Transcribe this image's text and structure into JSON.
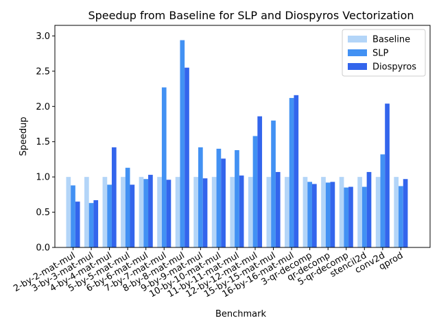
{
  "chart_data": {
    "type": "bar",
    "title": "Speedup from Baseline for SLP and Diospyros Vectorization",
    "xlabel": "Benchmark",
    "ylabel": "Speedup",
    "ylim": [
      0,
      3.15
    ],
    "yticks": [
      "0.0",
      "0.5",
      "1.0",
      "1.5",
      "2.0",
      "2.5",
      "3.0"
    ],
    "grid": false,
    "legend_position": "top-right",
    "categories": [
      "2-by-2-mat-mul",
      "3-by-3-mat-mul",
      "4-by-4-mat-mul",
      "5-by-5-mat-mul",
      "6-by-6-mat-mul",
      "7-by-7-mat-mul",
      "8-by-8-mat-mul",
      "9-by-9-mat-mul",
      "10-by-10-mat-mul",
      "11-by-11-mat-mul",
      "12-by-12-mat-mul",
      "15-by-15-mat-mul",
      "16-by-16-mat-mul",
      "3-qr-decomp",
      "qr-decomp",
      "5-qr-decomp",
      "stencil2d",
      "conv2d",
      "qprod"
    ],
    "series": [
      {
        "name": "Baseline",
        "color": "#b3d5f8",
        "values": [
          1.0,
          1.0,
          1.0,
          1.0,
          1.0,
          1.0,
          1.0,
          1.0,
          1.0,
          1.0,
          1.0,
          1.0,
          1.0,
          1.0,
          1.0,
          1.0,
          1.0,
          1.0,
          1.0
        ]
      },
      {
        "name": "SLP",
        "color": "#4291f3",
        "values": [
          0.88,
          0.63,
          0.89,
          1.13,
          0.97,
          2.27,
          2.94,
          1.42,
          1.4,
          1.38,
          1.58,
          1.8,
          2.12,
          0.93,
          0.92,
          0.85,
          0.86,
          1.32,
          0.87
        ]
      },
      {
        "name": "Diospyros",
        "color": "#3365ec",
        "values": [
          0.65,
          0.67,
          1.42,
          0.89,
          1.03,
          0.96,
          2.55,
          0.98,
          1.26,
          1.02,
          1.86,
          1.07,
          2.16,
          0.9,
          0.93,
          0.86,
          1.07,
          2.04,
          0.97
        ]
      }
    ]
  }
}
